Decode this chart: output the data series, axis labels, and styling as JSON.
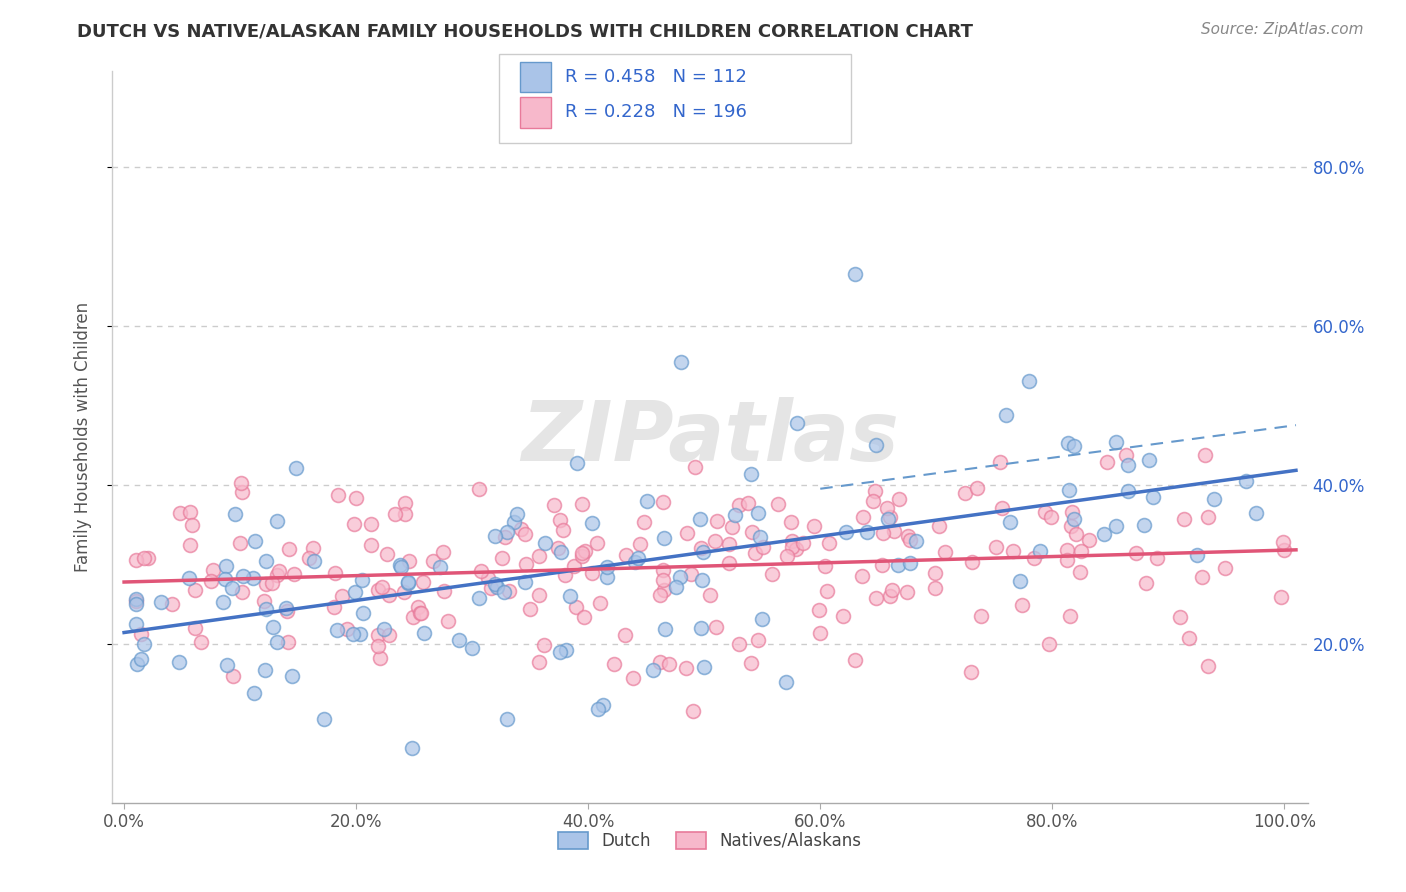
{
  "title": "DUTCH VS NATIVE/ALASKAN FAMILY HOUSEHOLDS WITH CHILDREN CORRELATION CHART",
  "source": "Source: ZipAtlas.com",
  "ylabel": "Family Households with Children",
  "x_ticks": [
    0.0,
    0.2,
    0.4,
    0.6,
    0.8,
    1.0
  ],
  "x_tick_labels": [
    "0.0%",
    "20.0%",
    "40.0%",
    "60.0%",
    "80.0%",
    "100.0%"
  ],
  "y_ticks_right": [
    0.2,
    0.4,
    0.6,
    0.8
  ],
  "y_tick_labels_right": [
    "20.0%",
    "40.0%",
    "60.0%",
    "80.0%"
  ],
  "xlim": [
    -0.01,
    1.02
  ],
  "ylim": [
    0.0,
    0.92
  ],
  "dutch_face_color": "#aac4e8",
  "dutch_edge_color": "#6699cc",
  "native_face_color": "#f7b8cb",
  "native_edge_color": "#e87a9a",
  "dutch_line_color": "#4472c4",
  "native_line_color": "#e05577",
  "dash_line_color": "#6699cc",
  "dutch_R": 0.458,
  "dutch_N": 112,
  "native_R": 0.228,
  "native_N": 196,
  "legend_dutch_label": "Dutch",
  "legend_native_label": "Natives/Alaskans",
  "watermark": "ZIPatlas",
  "title_color": "#333333",
  "source_color": "#888888",
  "axis_label_color": "#555555",
  "legend_text_color": "#3366cc",
  "grid_color": "#cccccc",
  "title_fontsize": 13,
  "source_fontsize": 11,
  "tick_fontsize": 12,
  "ylabel_fontsize": 12,
  "legend_fontsize": 13,
  "marker_size": 100,
  "marker_alpha": 0.7,
  "marker_linewidth": 1.2
}
